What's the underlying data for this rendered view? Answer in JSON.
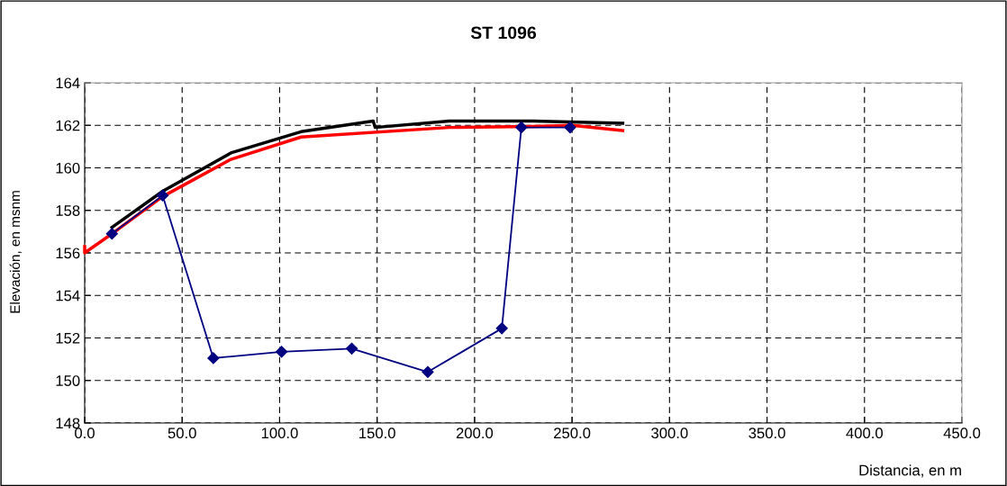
{
  "chart_data": {
    "type": "line",
    "title": "ST 1096",
    "xlabel": "Distancia, en m",
    "ylabel": "Elevación, en msnm",
    "xlim": [
      0,
      450
    ],
    "xticks": [
      {
        "value": 0,
        "label": "0.0"
      },
      {
        "value": 50,
        "label": "50.0"
      },
      {
        "value": 100,
        "label": "100.0"
      },
      {
        "value": 150,
        "label": "150.0"
      },
      {
        "value": 200,
        "label": "200.0"
      },
      {
        "value": 250,
        "label": "250.0"
      },
      {
        "value": 300,
        "label": "300.0"
      },
      {
        "value": 350,
        "label": "350.0"
      },
      {
        "value": 400,
        "label": "400.0"
      },
      {
        "value": 450,
        "label": "450.0"
      }
    ],
    "ylim": [
      148,
      164
    ],
    "yticks": [
      148,
      150,
      152,
      154,
      156,
      158,
      160,
      162,
      164
    ],
    "grid": true,
    "line_style": "solid",
    "series": [
      {
        "color": "#000000",
        "marker": "none",
        "x": [
          14,
          40,
          75,
          111,
          148,
          149,
          187,
          230,
          276
        ],
        "values": [
          157.2,
          158.9,
          160.7,
          161.7,
          162.2,
          161.9,
          162.2,
          162.2,
          162.1
        ]
      },
      {
        "color": "#ff0000",
        "marker": "none",
        "x": [
          0,
          0,
          14,
          40,
          75,
          111,
          187,
          230,
          250,
          276
        ],
        "values": [
          156.3,
          156.0,
          156.9,
          158.65,
          160.4,
          161.45,
          161.9,
          161.95,
          162.0,
          161.75
        ]
      },
      {
        "color": "#000080",
        "marker": "diamond",
        "x": [
          14,
          40,
          66,
          101,
          137,
          176,
          214,
          224,
          249
        ],
        "values": [
          156.9,
          158.7,
          151.05,
          151.35,
          151.5,
          150.4,
          152.45,
          161.9,
          161.9
        ]
      }
    ]
  }
}
